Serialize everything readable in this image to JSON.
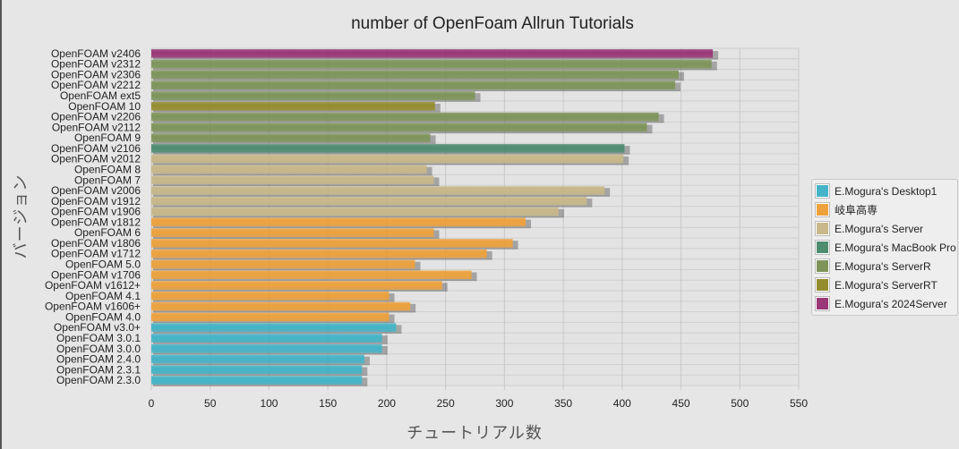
{
  "chart_data": {
    "type": "bar",
    "orientation": "horizontal",
    "title": "number of OpenFoam Allrun Tutorials",
    "xlabel": "チュートリアル数",
    "ylabel": "バージョン",
    "xlim": [
      0,
      550
    ],
    "xticks": [
      "0",
      "50",
      "100",
      "150",
      "200",
      "250",
      "300",
      "350",
      "400",
      "450",
      "500",
      "550"
    ],
    "grid": true,
    "legend_position": "right",
    "series": [
      {
        "name": "E.Mogura's Desktop1",
        "color": "#45b4c8"
      },
      {
        "name": "岐阜高専",
        "color": "#eda23d"
      },
      {
        "name": "E.Mogura's Server",
        "color": "#c8b88a"
      },
      {
        "name": "E.Mogura's MacBook Pro",
        "color": "#4e8d70"
      },
      {
        "name": "E.Mogura's ServerR",
        "color": "#7e955a"
      },
      {
        "name": "E.Mogura's ServerRT",
        "color": "#948d2e"
      },
      {
        "name": "E.Mogura's 2024Server",
        "color": "#9b3878"
      }
    ],
    "bars": [
      {
        "label": "OpenFOAM v2406",
        "value": 477,
        "series": 6
      },
      {
        "label": "OpenFOAM v2312",
        "value": 476,
        "series": 4
      },
      {
        "label": "OpenFOAM v2306",
        "value": 448,
        "series": 4
      },
      {
        "label": "OpenFOAM v2212",
        "value": 445,
        "series": 4
      },
      {
        "label": "OpenFOAM ext5",
        "value": 275,
        "series": 4
      },
      {
        "label": "OpenFOAM 10",
        "value": 241,
        "series": 5
      },
      {
        "label": "OpenFOAM v2206",
        "value": 431,
        "series": 4
      },
      {
        "label": "OpenFOAM v2112",
        "value": 421,
        "series": 4
      },
      {
        "label": "OpenFOAM 9",
        "value": 237,
        "series": 4
      },
      {
        "label": "OpenFOAM v2106",
        "value": 402,
        "series": 3
      },
      {
        "label": "OpenFOAM v2012",
        "value": 401,
        "series": 2
      },
      {
        "label": "OpenFOAM 8",
        "value": 234,
        "series": 2
      },
      {
        "label": "OpenFOAM 7",
        "value": 240,
        "series": 2
      },
      {
        "label": "OpenFOAM v2006",
        "value": 385,
        "series": 2
      },
      {
        "label": "OpenFOAM v1912",
        "value": 370,
        "series": 2
      },
      {
        "label": "OpenFOAM v1906",
        "value": 346,
        "series": 2
      },
      {
        "label": "OpenFOAM v1812",
        "value": 318,
        "series": 1
      },
      {
        "label": "OpenFOAM 6",
        "value": 240,
        "series": 1
      },
      {
        "label": "OpenFOAM v1806",
        "value": 307,
        "series": 1
      },
      {
        "label": "OpenFOAM v1712",
        "value": 285,
        "series": 1
      },
      {
        "label": "OpenFOAM 5.0",
        "value": 224,
        "series": 1
      },
      {
        "label": "OpenFOAM v1706",
        "value": 272,
        "series": 1
      },
      {
        "label": "OpenFOAM v1612+",
        "value": 247,
        "series": 1
      },
      {
        "label": "OpenFOAM 4.1",
        "value": 202,
        "series": 1
      },
      {
        "label": "OpenFOAM v1606+",
        "value": 220,
        "series": 1
      },
      {
        "label": "OpenFOAM 4.0",
        "value": 202,
        "series": 1
      },
      {
        "label": "OpenFOAM v3.0+",
        "value": 208,
        "series": 0
      },
      {
        "label": "OpenFOAM 3.0.1",
        "value": 196,
        "series": 0
      },
      {
        "label": "OpenFOAM 3.0.0",
        "value": 196,
        "series": 0
      },
      {
        "label": "OpenFOAM 2.4.0",
        "value": 181,
        "series": 0
      },
      {
        "label": "OpenFOAM 2.3.1",
        "value": 179,
        "series": 0
      },
      {
        "label": "OpenFOAM 2.3.0",
        "value": 179,
        "series": 0
      }
    ]
  }
}
